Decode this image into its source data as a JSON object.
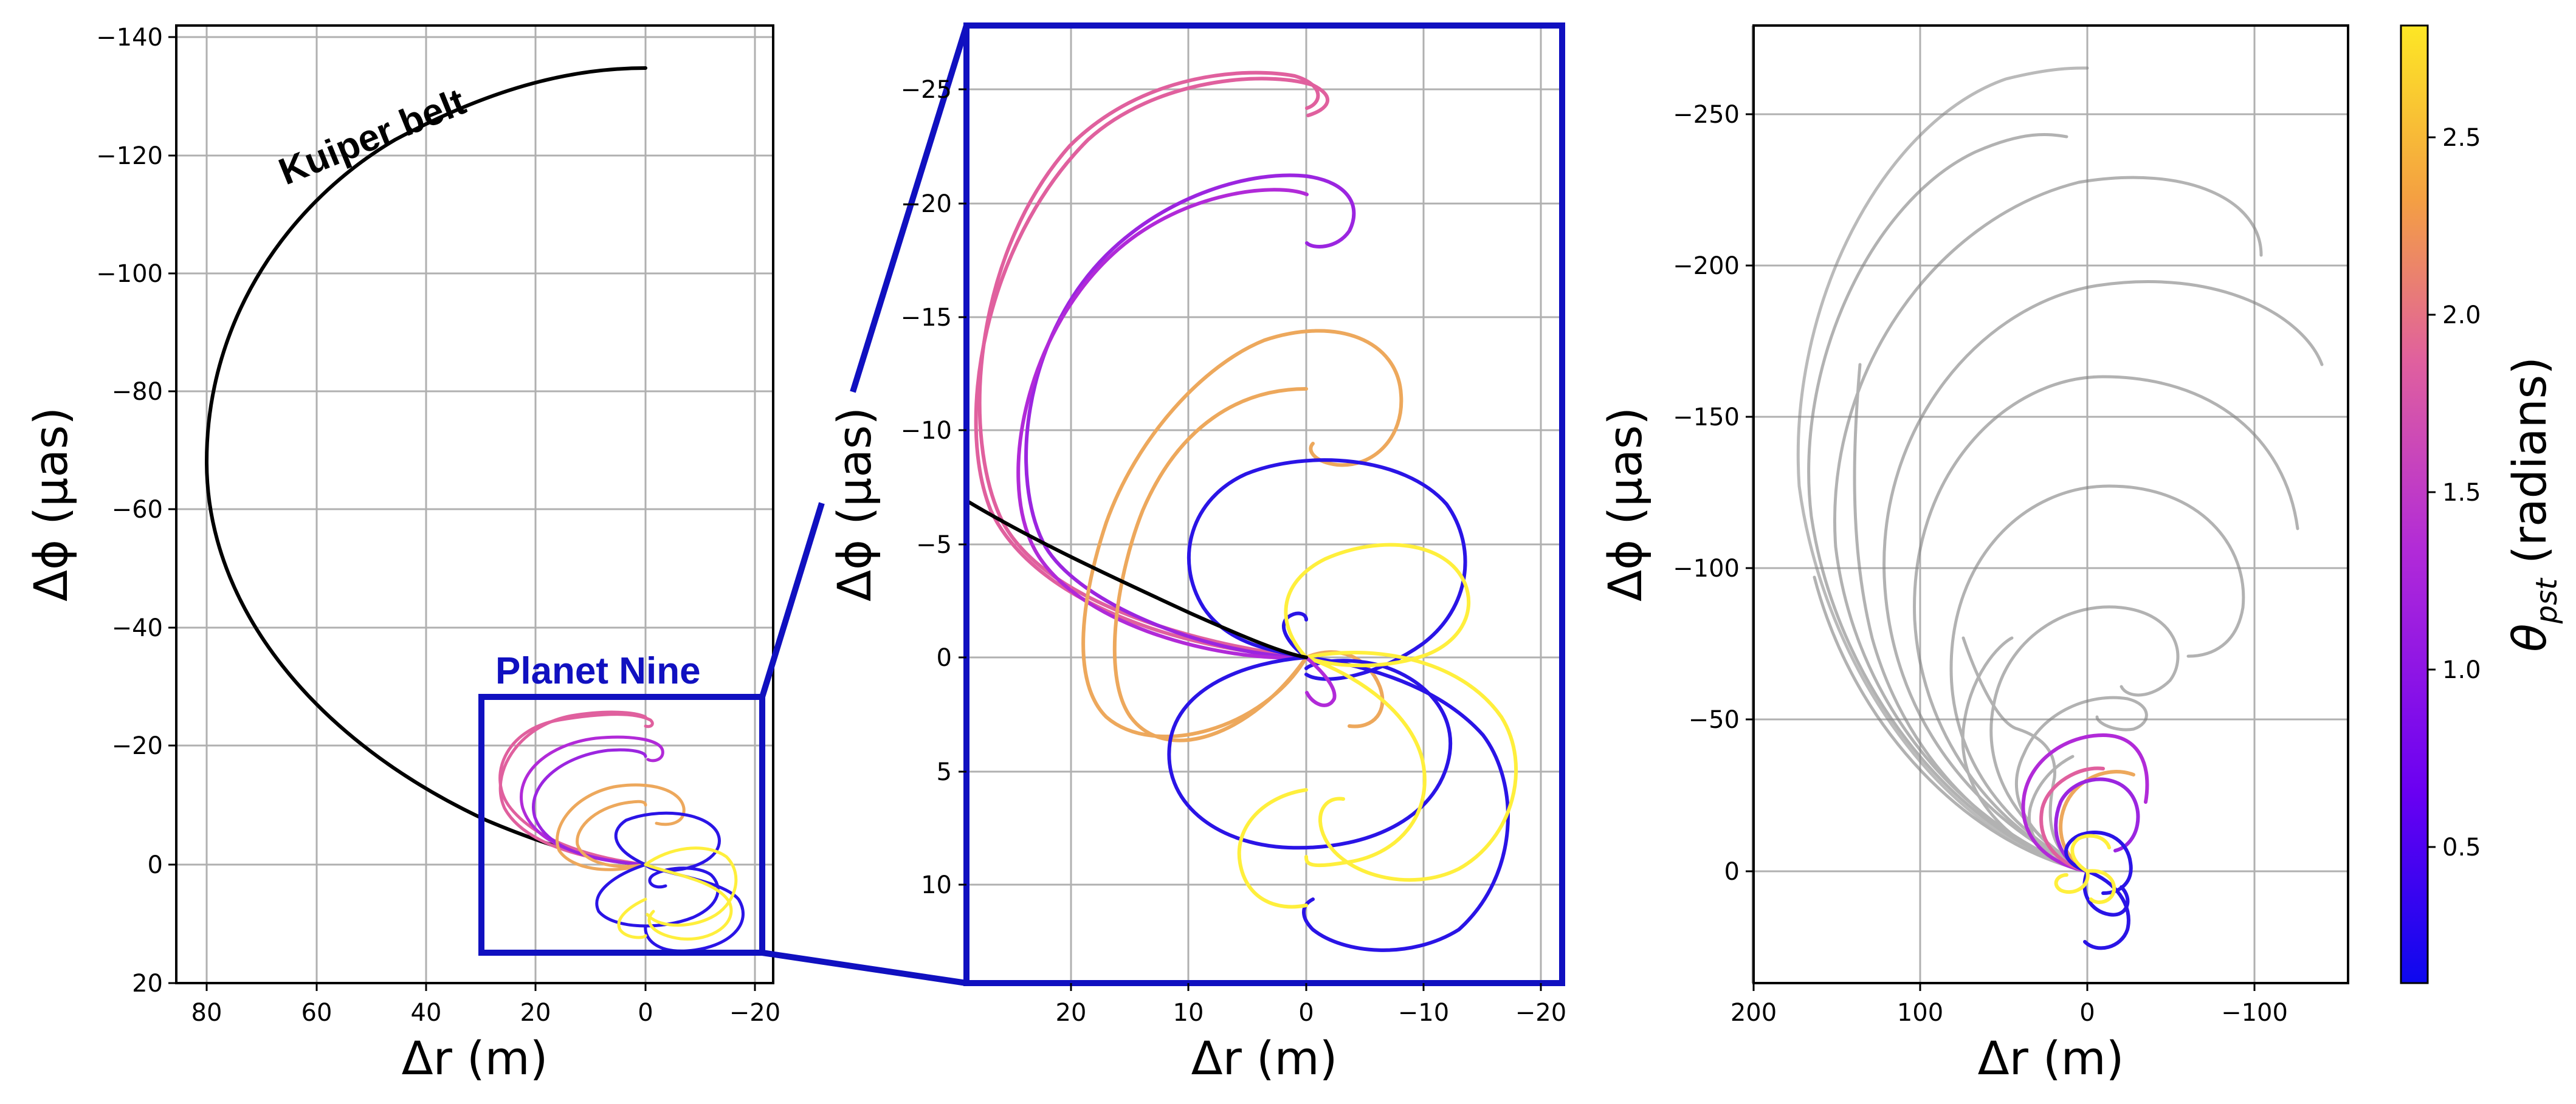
{
  "figure": {
    "panels": [
      "panel-left",
      "panel-middle",
      "panel-right"
    ]
  },
  "chart_data": [
    {
      "type": "line",
      "panel": "left",
      "title": "",
      "xlabel": "Δr (m)",
      "ylabel": "Δϕ (μas)",
      "xlim": [
        85,
        -24
      ],
      "ylim": [
        20,
        -142
      ],
      "xticks": [
        "80",
        "60",
        "40",
        "20",
        "0",
        "−20"
      ],
      "xtick_values": [
        80,
        60,
        40,
        20,
        0,
        -20
      ],
      "yticks": [
        "−140",
        "−120",
        "−100",
        "−80",
        "−60",
        "−40",
        "−20",
        "0",
        "20"
      ],
      "ytick_values": [
        -140,
        -120,
        -100,
        -80,
        -60,
        -40,
        -20,
        0,
        20
      ],
      "grid": true,
      "annotations": [
        {
          "text": "Kuiper belt",
          "x": 70,
          "y": -114,
          "rotation": -22,
          "color": "#000000"
        },
        {
          "text": "Planet Nine",
          "x": 30,
          "y": -33,
          "color": "#1010c0"
        }
      ],
      "series": [
        {
          "name": "Kuiper belt",
          "color": "#000000",
          "x": [
            0,
            15,
            30,
            42,
            52,
            60,
            66,
            70,
            74,
            77,
            79,
            80,
            80,
            79,
            76,
            72,
            66,
            60,
            52,
            44,
            36,
            28,
            20,
            10,
            0
          ],
          "y": [
            -134,
            -132,
            -127,
            -121,
            -114,
            -107,
            -100,
            -94,
            -87,
            -80,
            -73,
            -66,
            -59,
            -52,
            -45,
            -38,
            -31,
            -25,
            -19,
            -14,
            -9,
            -6,
            -3,
            -1,
            0
          ]
        },
        {
          "name": "Planet Nine",
          "color": "#1010c0",
          "x": [
            0,
            15,
            30,
            42,
            52,
            60,
            66,
            70,
            74,
            77,
            79,
            80,
            80,
            79,
            76,
            72,
            66,
            60,
            52,
            44,
            36,
            28,
            20,
            10,
            0
          ],
          "y": [
            -134,
            -132,
            -127,
            -121,
            -114,
            -107,
            -100,
            -94,
            -87,
            -80,
            -73,
            -66,
            -59,
            -52,
            -45,
            -38,
            -31,
            -25,
            -19,
            -14,
            -9,
            -6,
            -3,
            -1,
            0
          ]
        }
      ]
    },
    {
      "type": "line",
      "panel": "middle",
      "title": "",
      "xlabel": "Δr (m)",
      "ylabel": "Δϕ (μas)",
      "xlim": [
        29,
        -22
      ],
      "ylim": [
        14.5,
        -27.5
      ],
      "xticks": [
        "20",
        "10",
        "0",
        "−10",
        "−20"
      ],
      "xtick_values": [
        20,
        10,
        0,
        -10,
        -20
      ],
      "yticks": [
        "−25",
        "−20",
        "−15",
        "−10",
        "−5",
        "0",
        "5",
        "10"
      ],
      "ytick_values": [
        -25,
        -20,
        -15,
        -10,
        -5,
        0,
        5,
        10
      ],
      "grid": true,
      "series": [
        {
          "name": "Kuiper belt",
          "color": "#000000",
          "x": [
            29,
            25,
            20,
            15,
            10,
            5,
            2,
            0
          ],
          "y": [
            -6.9,
            -5.3,
            -3.6,
            -2.3,
            -1.3,
            -0.5,
            -0.1,
            0
          ]
        }
      ]
    },
    {
      "type": "line",
      "panel": "right",
      "title": "",
      "xlabel": "Δr (m)",
      "ylabel": "Δϕ (μas)",
      "xlim": [
        200,
        -155
      ],
      "ylim": [
        37,
        -280
      ],
      "xticks": [
        "200",
        "100",
        "0",
        "−100"
      ],
      "xtick_values": [
        200,
        100,
        0,
        -100
      ],
      "yticks": [
        "−250",
        "−200",
        "−150",
        "−100",
        "−50",
        "0"
      ],
      "ytick_values": [
        -250,
        -200,
        -150,
        -100,
        -50,
        0
      ],
      "grid": true
    }
  ],
  "colorbar": {
    "label": "θpst (radians)",
    "label_main": "θ",
    "label_sub": "pst",
    "label_rest": " (radians)",
    "min": 0.1,
    "max": 2.8,
    "ticks": [
      "0.5",
      "1.0",
      "1.5",
      "2.0",
      "2.5"
    ],
    "tick_values": [
      0.5,
      1.0,
      1.5,
      2.0,
      2.5
    ],
    "colormap": "plasma",
    "colors": [
      "#0d08ee",
      "#6a00f2",
      "#b12ad8",
      "#e0609e",
      "#f4a042",
      "#fde725"
    ]
  },
  "trajectory_colors": {
    "theta_0_5": "#2a14e6",
    "theta_1_0": "#9b25e0",
    "theta_1_5": "#e0609e",
    "theta_2_0": "#eda85c",
    "theta_2_7": "#ffef3c",
    "grey": "#808080"
  }
}
